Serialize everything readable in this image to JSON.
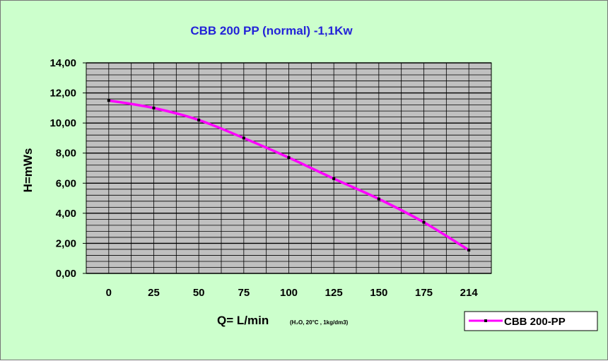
{
  "chart_data": {
    "type": "line",
    "title": "CBB 200 PP (normal)  -1,1Kw",
    "xlabel": "Q= L/min",
    "xlabel_note": "(H₂O, 20°C , 1kg/dm3)",
    "ylabel": "H=mWs",
    "categories": [
      "0",
      "25",
      "50",
      "75",
      "100",
      "125",
      "150",
      "175",
      "214"
    ],
    "ylim": [
      0,
      14
    ],
    "yticks": [
      "0,00",
      "2,00",
      "4,00",
      "6,00",
      "8,00",
      "10,00",
      "12,00",
      "14,00"
    ],
    "grid": true,
    "legend_position": "bottom-right",
    "series": [
      {
        "name": "CBB 200-PP",
        "values": [
          11.5,
          11.0,
          10.2,
          9.0,
          7.7,
          6.3,
          4.95,
          3.4,
          1.55
        ]
      }
    ],
    "colors": {
      "background": "#ccffcc",
      "plot_area": "#c0c0c0",
      "line": "#ff00ff",
      "marker": "#000000",
      "title": "#2323d8"
    }
  }
}
